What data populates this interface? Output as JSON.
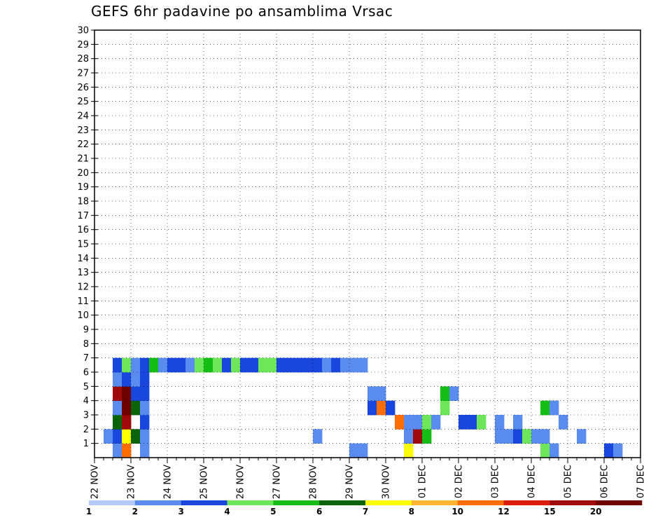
{
  "title": "GEFS 6hr padavine po ansamblima Vrsac",
  "chart_data": {
    "type": "heatmap",
    "title": "GEFS 6hr padavine po ansamblima Vrsac",
    "x_labels": [
      "22 NOV",
      "23 NOV",
      "24 NOV",
      "25 NOV",
      "26 NOV",
      "27 NOV",
      "28 NOV",
      "29 NOV",
      "30 NOV",
      "01 DEC",
      "02 DEC",
      "03 DEC",
      "04 DEC",
      "05 DEC",
      "06 DEC",
      "07 DEC"
    ],
    "y_labels": [
      "1",
      "2",
      "3",
      "4",
      "5",
      "6",
      "7",
      "8",
      "9",
      "10",
      "11",
      "12",
      "13",
      "14",
      "15",
      "16",
      "17",
      "18",
      "19",
      "20",
      "21",
      "22",
      "23",
      "24",
      "25",
      "26",
      "27",
      "28",
      "29",
      "30"
    ],
    "colorbar": {
      "labels": [
        "1",
        "2",
        "3",
        "4",
        "5",
        "6",
        "7",
        "8",
        "10",
        "12",
        "15",
        "20"
      ],
      "colors": [
        "#b4c8fa",
        "#5a8cf0",
        "#1946dc",
        "#6ee65a",
        "#14be14",
        "#0a640a",
        "#ffff00",
        "#ffb432",
        "#ff6e00",
        "#dc1e0a",
        "#a00a0a",
        "#6e0000"
      ]
    },
    "cells": [
      {
        "m": 1,
        "s": 2,
        "c": 1
      },
      {
        "m": 1,
        "s": 3,
        "c": 8
      },
      {
        "m": 1,
        "s": 5,
        "c": 1
      },
      {
        "m": 1,
        "s": 28,
        "c": 1
      },
      {
        "m": 1,
        "s": 29,
        "c": 1
      },
      {
        "m": 1,
        "s": 34,
        "c": 6
      },
      {
        "m": 1,
        "s": 49,
        "c": 3
      },
      {
        "m": 1,
        "s": 50,
        "c": 1
      },
      {
        "m": 1,
        "s": 56,
        "c": 2
      },
      {
        "m": 1,
        "s": 57,
        "c": 1
      },
      {
        "m": 2,
        "s": 1,
        "c": 1
      },
      {
        "m": 2,
        "s": 2,
        "c": 2
      },
      {
        "m": 2,
        "s": 3,
        "c": 6
      },
      {
        "m": 2,
        "s": 4,
        "c": 5
      },
      {
        "m": 2,
        "s": 5,
        "c": 1
      },
      {
        "m": 2,
        "s": 24,
        "c": 1
      },
      {
        "m": 2,
        "s": 34,
        "c": 1
      },
      {
        "m": 2,
        "s": 35,
        "c": 10
      },
      {
        "m": 2,
        "s": 36,
        "c": 4
      },
      {
        "m": 2,
        "s": 44,
        "c": 1
      },
      {
        "m": 2,
        "s": 45,
        "c": 1
      },
      {
        "m": 2,
        "s": 46,
        "c": 2
      },
      {
        "m": 2,
        "s": 47,
        "c": 3
      },
      {
        "m": 2,
        "s": 48,
        "c": 1
      },
      {
        "m": 2,
        "s": 49,
        "c": 1
      },
      {
        "m": 2,
        "s": 53,
        "c": 1
      },
      {
        "m": 3,
        "s": 2,
        "c": 5
      },
      {
        "m": 3,
        "s": 3,
        "c": 10
      },
      {
        "m": 3,
        "s": 5,
        "c": 2
      },
      {
        "m": 3,
        "s": 33,
        "c": 8
      },
      {
        "m": 3,
        "s": 34,
        "c": 1
      },
      {
        "m": 3,
        "s": 35,
        "c": 1
      },
      {
        "m": 3,
        "s": 36,
        "c": 3
      },
      {
        "m": 3,
        "s": 37,
        "c": 1
      },
      {
        "m": 3,
        "s": 40,
        "c": 2
      },
      {
        "m": 3,
        "s": 41,
        "c": 2
      },
      {
        "m": 3,
        "s": 42,
        "c": 3
      },
      {
        "m": 3,
        "s": 44,
        "c": 1
      },
      {
        "m": 3,
        "s": 46,
        "c": 1
      },
      {
        "m": 3,
        "s": 51,
        "c": 1
      },
      {
        "m": 4,
        "s": 2,
        "c": 1
      },
      {
        "m": 4,
        "s": 3,
        "c": 11
      },
      {
        "m": 4,
        "s": 4,
        "c": 5
      },
      {
        "m": 4,
        "s": 5,
        "c": 1
      },
      {
        "m": 4,
        "s": 30,
        "c": 2
      },
      {
        "m": 4,
        "s": 31,
        "c": 8
      },
      {
        "m": 4,
        "s": 32,
        "c": 2
      },
      {
        "m": 4,
        "s": 38,
        "c": 3
      },
      {
        "m": 4,
        "s": 49,
        "c": 4
      },
      {
        "m": 4,
        "s": 50,
        "c": 1
      },
      {
        "m": 5,
        "s": 2,
        "c": 10
      },
      {
        "m": 5,
        "s": 3,
        "c": 11
      },
      {
        "m": 5,
        "s": 4,
        "c": 2
      },
      {
        "m": 5,
        "s": 5,
        "c": 2
      },
      {
        "m": 5,
        "s": 30,
        "c": 1
      },
      {
        "m": 5,
        "s": 31,
        "c": 1
      },
      {
        "m": 5,
        "s": 38,
        "c": 4
      },
      {
        "m": 5,
        "s": 39,
        "c": 1
      },
      {
        "m": 6,
        "s": 2,
        "c": 1
      },
      {
        "m": 6,
        "s": 3,
        "c": 2
      },
      {
        "m": 6,
        "s": 4,
        "c": 1
      },
      {
        "m": 6,
        "s": 5,
        "c": 2
      },
      {
        "m": 7,
        "s": 2,
        "c": 2
      },
      {
        "m": 7,
        "s": 3,
        "c": 3
      },
      {
        "m": 7,
        "s": 4,
        "c": 1
      },
      {
        "m": 7,
        "s": 5,
        "c": 2
      },
      {
        "m": 7,
        "s": 6,
        "c": 4
      },
      {
        "m": 7,
        "s": 7,
        "c": 1
      },
      {
        "m": 7,
        "s": 8,
        "c": 2
      },
      {
        "m": 7,
        "s": 9,
        "c": 2
      },
      {
        "m": 7,
        "s": 10,
        "c": 1
      },
      {
        "m": 7,
        "s": 11,
        "c": 3
      },
      {
        "m": 7,
        "s": 12,
        "c": 4
      },
      {
        "m": 7,
        "s": 13,
        "c": 3
      },
      {
        "m": 7,
        "s": 14,
        "c": 2
      },
      {
        "m": 7,
        "s": 15,
        "c": 3
      },
      {
        "m": 7,
        "s": 16,
        "c": 2
      },
      {
        "m": 7,
        "s": 17,
        "c": 2
      },
      {
        "m": 7,
        "s": 18,
        "c": 3
      },
      {
        "m": 7,
        "s": 19,
        "c": 3
      },
      {
        "m": 7,
        "s": 20,
        "c": 2
      },
      {
        "m": 7,
        "s": 21,
        "c": 2
      },
      {
        "m": 7,
        "s": 22,
        "c": 2
      },
      {
        "m": 7,
        "s": 23,
        "c": 2
      },
      {
        "m": 7,
        "s": 24,
        "c": 2
      },
      {
        "m": 7,
        "s": 25,
        "c": 1
      },
      {
        "m": 7,
        "s": 26,
        "c": 2
      },
      {
        "m": 7,
        "s": 27,
        "c": 1
      },
      {
        "m": 7,
        "s": 28,
        "c": 1
      },
      {
        "m": 7,
        "s": 29,
        "c": 1
      }
    ]
  }
}
